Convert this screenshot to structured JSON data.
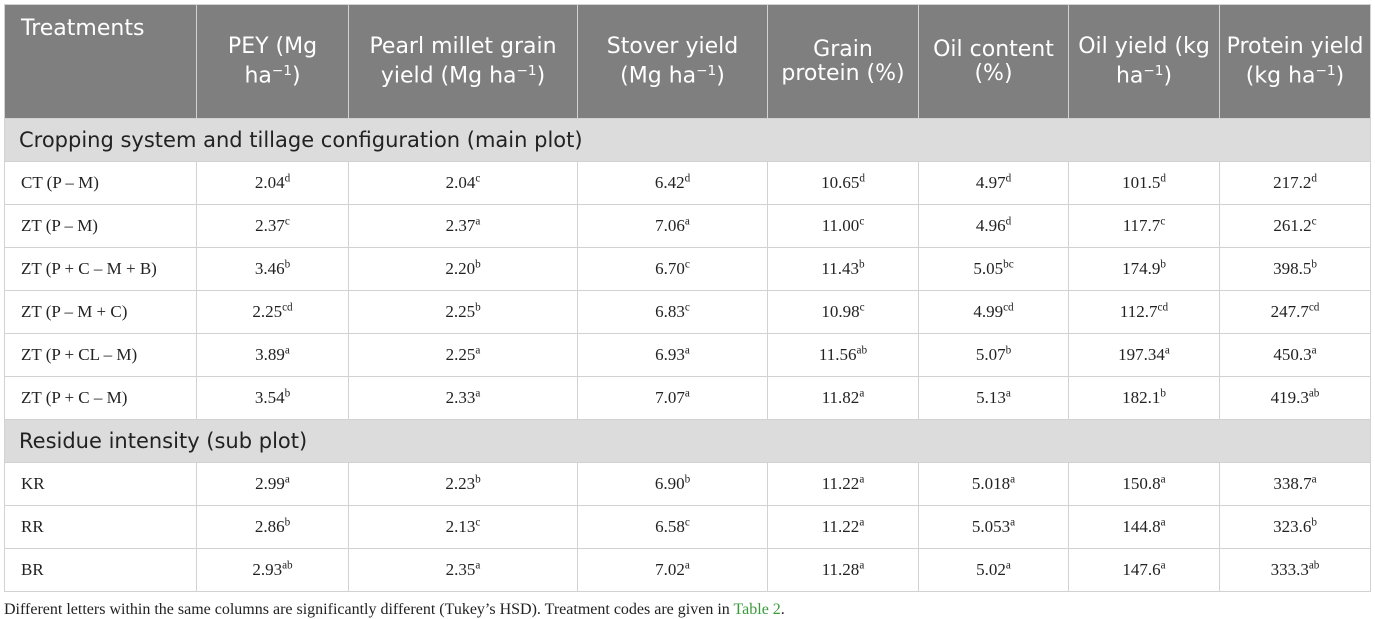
{
  "table": {
    "headers": [
      {
        "main": "Treatments"
      },
      {
        "main": "PEY (Mg ha",
        "sup": "−1",
        "after": ")"
      },
      {
        "main": "Pearl millet grain yield (Mg ha",
        "sup": "−1",
        "after": ")"
      },
      {
        "main": "Stover yield (Mg ha",
        "sup": "−1",
        "after": ")"
      },
      {
        "main": "Grain protein (%)"
      },
      {
        "main": "Oil content (%)"
      },
      {
        "main": "Oil yield (kg ha",
        "sup": "−1",
        "after": ")"
      },
      {
        "main": "Protein yield (kg ha",
        "sup": "−1",
        "after": ")"
      }
    ],
    "sections": [
      {
        "title": "Cropping system and tillage configuration (main plot)",
        "rows": [
          {
            "label": "CT (P – M)",
            "cells": [
              [
                "2.04",
                "d"
              ],
              [
                "2.04",
                "c"
              ],
              [
                "6.42",
                "d"
              ],
              [
                "10.65",
                "d"
              ],
              [
                "4.97",
                "d"
              ],
              [
                "101.5",
                "d"
              ],
              [
                "217.2",
                "d"
              ]
            ]
          },
          {
            "label": "ZT (P – M)",
            "cells": [
              [
                "2.37",
                "c"
              ],
              [
                "2.37",
                "a"
              ],
              [
                "7.06",
                "a"
              ],
              [
                "11.00",
                "c"
              ],
              [
                "4.96",
                "d"
              ],
              [
                "117.7",
                "c"
              ],
              [
                "261.2",
                "c"
              ]
            ]
          },
          {
            "label": "ZT (P + C – M + B)",
            "cells": [
              [
                "3.46",
                "b"
              ],
              [
                "2.20",
                "b"
              ],
              [
                "6.70",
                "c"
              ],
              [
                "11.43",
                "b"
              ],
              [
                "5.05",
                "bc"
              ],
              [
                "174.9",
                "b"
              ],
              [
                "398.5",
                "b"
              ]
            ]
          },
          {
            "label": "ZT (P – M + C)",
            "cells": [
              [
                "2.25",
                "cd"
              ],
              [
                "2.25",
                "b"
              ],
              [
                "6.83",
                "c"
              ],
              [
                "10.98",
                "c"
              ],
              [
                "4.99",
                "cd"
              ],
              [
                "112.7",
                "cd"
              ],
              [
                "247.7",
                "cd"
              ]
            ]
          },
          {
            "label": "ZT (P + CL – M)",
            "cells": [
              [
                "3.89",
                "a"
              ],
              [
                "2.25",
                "a"
              ],
              [
                "6.93",
                "a"
              ],
              [
                "11.56",
                "ab"
              ],
              [
                "5.07",
                "b"
              ],
              [
                "197.34",
                "a"
              ],
              [
                "450.3",
                "a"
              ]
            ]
          },
          {
            "label": "ZT (P + C – M)",
            "cells": [
              [
                "3.54",
                "b"
              ],
              [
                "2.33",
                "a"
              ],
              [
                "7.07",
                "a"
              ],
              [
                "11.82",
                "a"
              ],
              [
                "5.13",
                "a"
              ],
              [
                "182.1",
                "b"
              ],
              [
                "419.3",
                "ab"
              ]
            ]
          }
        ]
      },
      {
        "title": "Residue intensity (sub plot)",
        "rows": [
          {
            "label": "KR",
            "cells": [
              [
                "2.99",
                "a"
              ],
              [
                "2.23",
                "b"
              ],
              [
                "6.90",
                "b"
              ],
              [
                "11.22",
                "a"
              ],
              [
                "5.018",
                "a"
              ],
              [
                "150.8",
                "a"
              ],
              [
                "338.7",
                "a"
              ]
            ]
          },
          {
            "label": "RR",
            "cells": [
              [
                "2.86",
                "b"
              ],
              [
                "2.13",
                "c"
              ],
              [
                "6.58",
                "c"
              ],
              [
                "11.22",
                "a"
              ],
              [
                "5.053",
                "a"
              ],
              [
                "144.8",
                "a"
              ],
              [
                "323.6",
                "b"
              ]
            ]
          },
          {
            "label": "BR",
            "cells": [
              [
                "2.93",
                "ab"
              ],
              [
                "2.35",
                "a"
              ],
              [
                "7.02",
                "a"
              ],
              [
                "11.28",
                "a"
              ],
              [
                "5.02",
                "a"
              ],
              [
                "147.6",
                "a"
              ],
              [
                "333.3",
                "ab"
              ]
            ]
          }
        ]
      }
    ]
  },
  "footnote": {
    "text": "Different letters within the same columns are significantly different (Tukey’s HSD). Treatment codes are given in ",
    "link": "Table 2",
    "end": "."
  },
  "colors": {
    "header_bg": "#7f7f7f",
    "section_bg": "#dcdcdc",
    "link": "#3a9a3a"
  }
}
